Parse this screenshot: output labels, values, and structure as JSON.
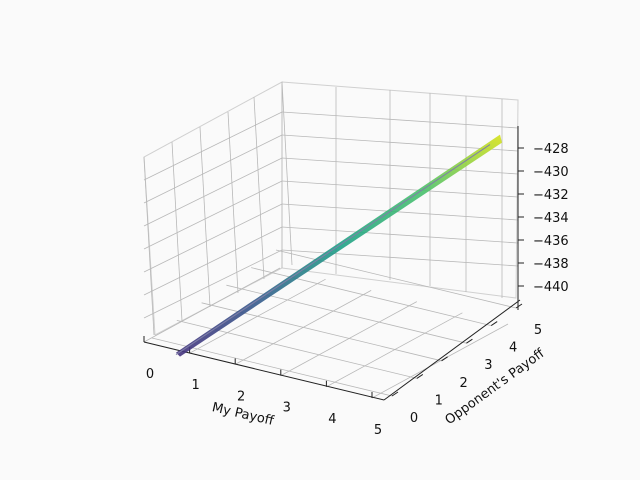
{
  "chart_data": {
    "type": "surface3d",
    "title": "",
    "xlabel": "My Payoff",
    "ylabel": "Opponent's Payoff",
    "zlabel": "",
    "xlim": [
      0,
      5
    ],
    "ylim": [
      0,
      5
    ],
    "zlim": [
      -441,
      -427
    ],
    "x_ticks": [
      "0",
      "1",
      "2",
      "3",
      "4",
      "5"
    ],
    "y_ticks": [
      "0",
      "1",
      "2",
      "3",
      "4",
      "5"
    ],
    "z_ticks": [
      "−428",
      "−430",
      "−432",
      "−434",
      "−436",
      "−438",
      "−440"
    ],
    "surface": {
      "colormap": "viridis",
      "x_start": 0,
      "x_end": 5,
      "y_start": 0,
      "y_end": 5,
      "z_start": -441.5,
      "z_end": -427.5
    },
    "grid": true
  }
}
